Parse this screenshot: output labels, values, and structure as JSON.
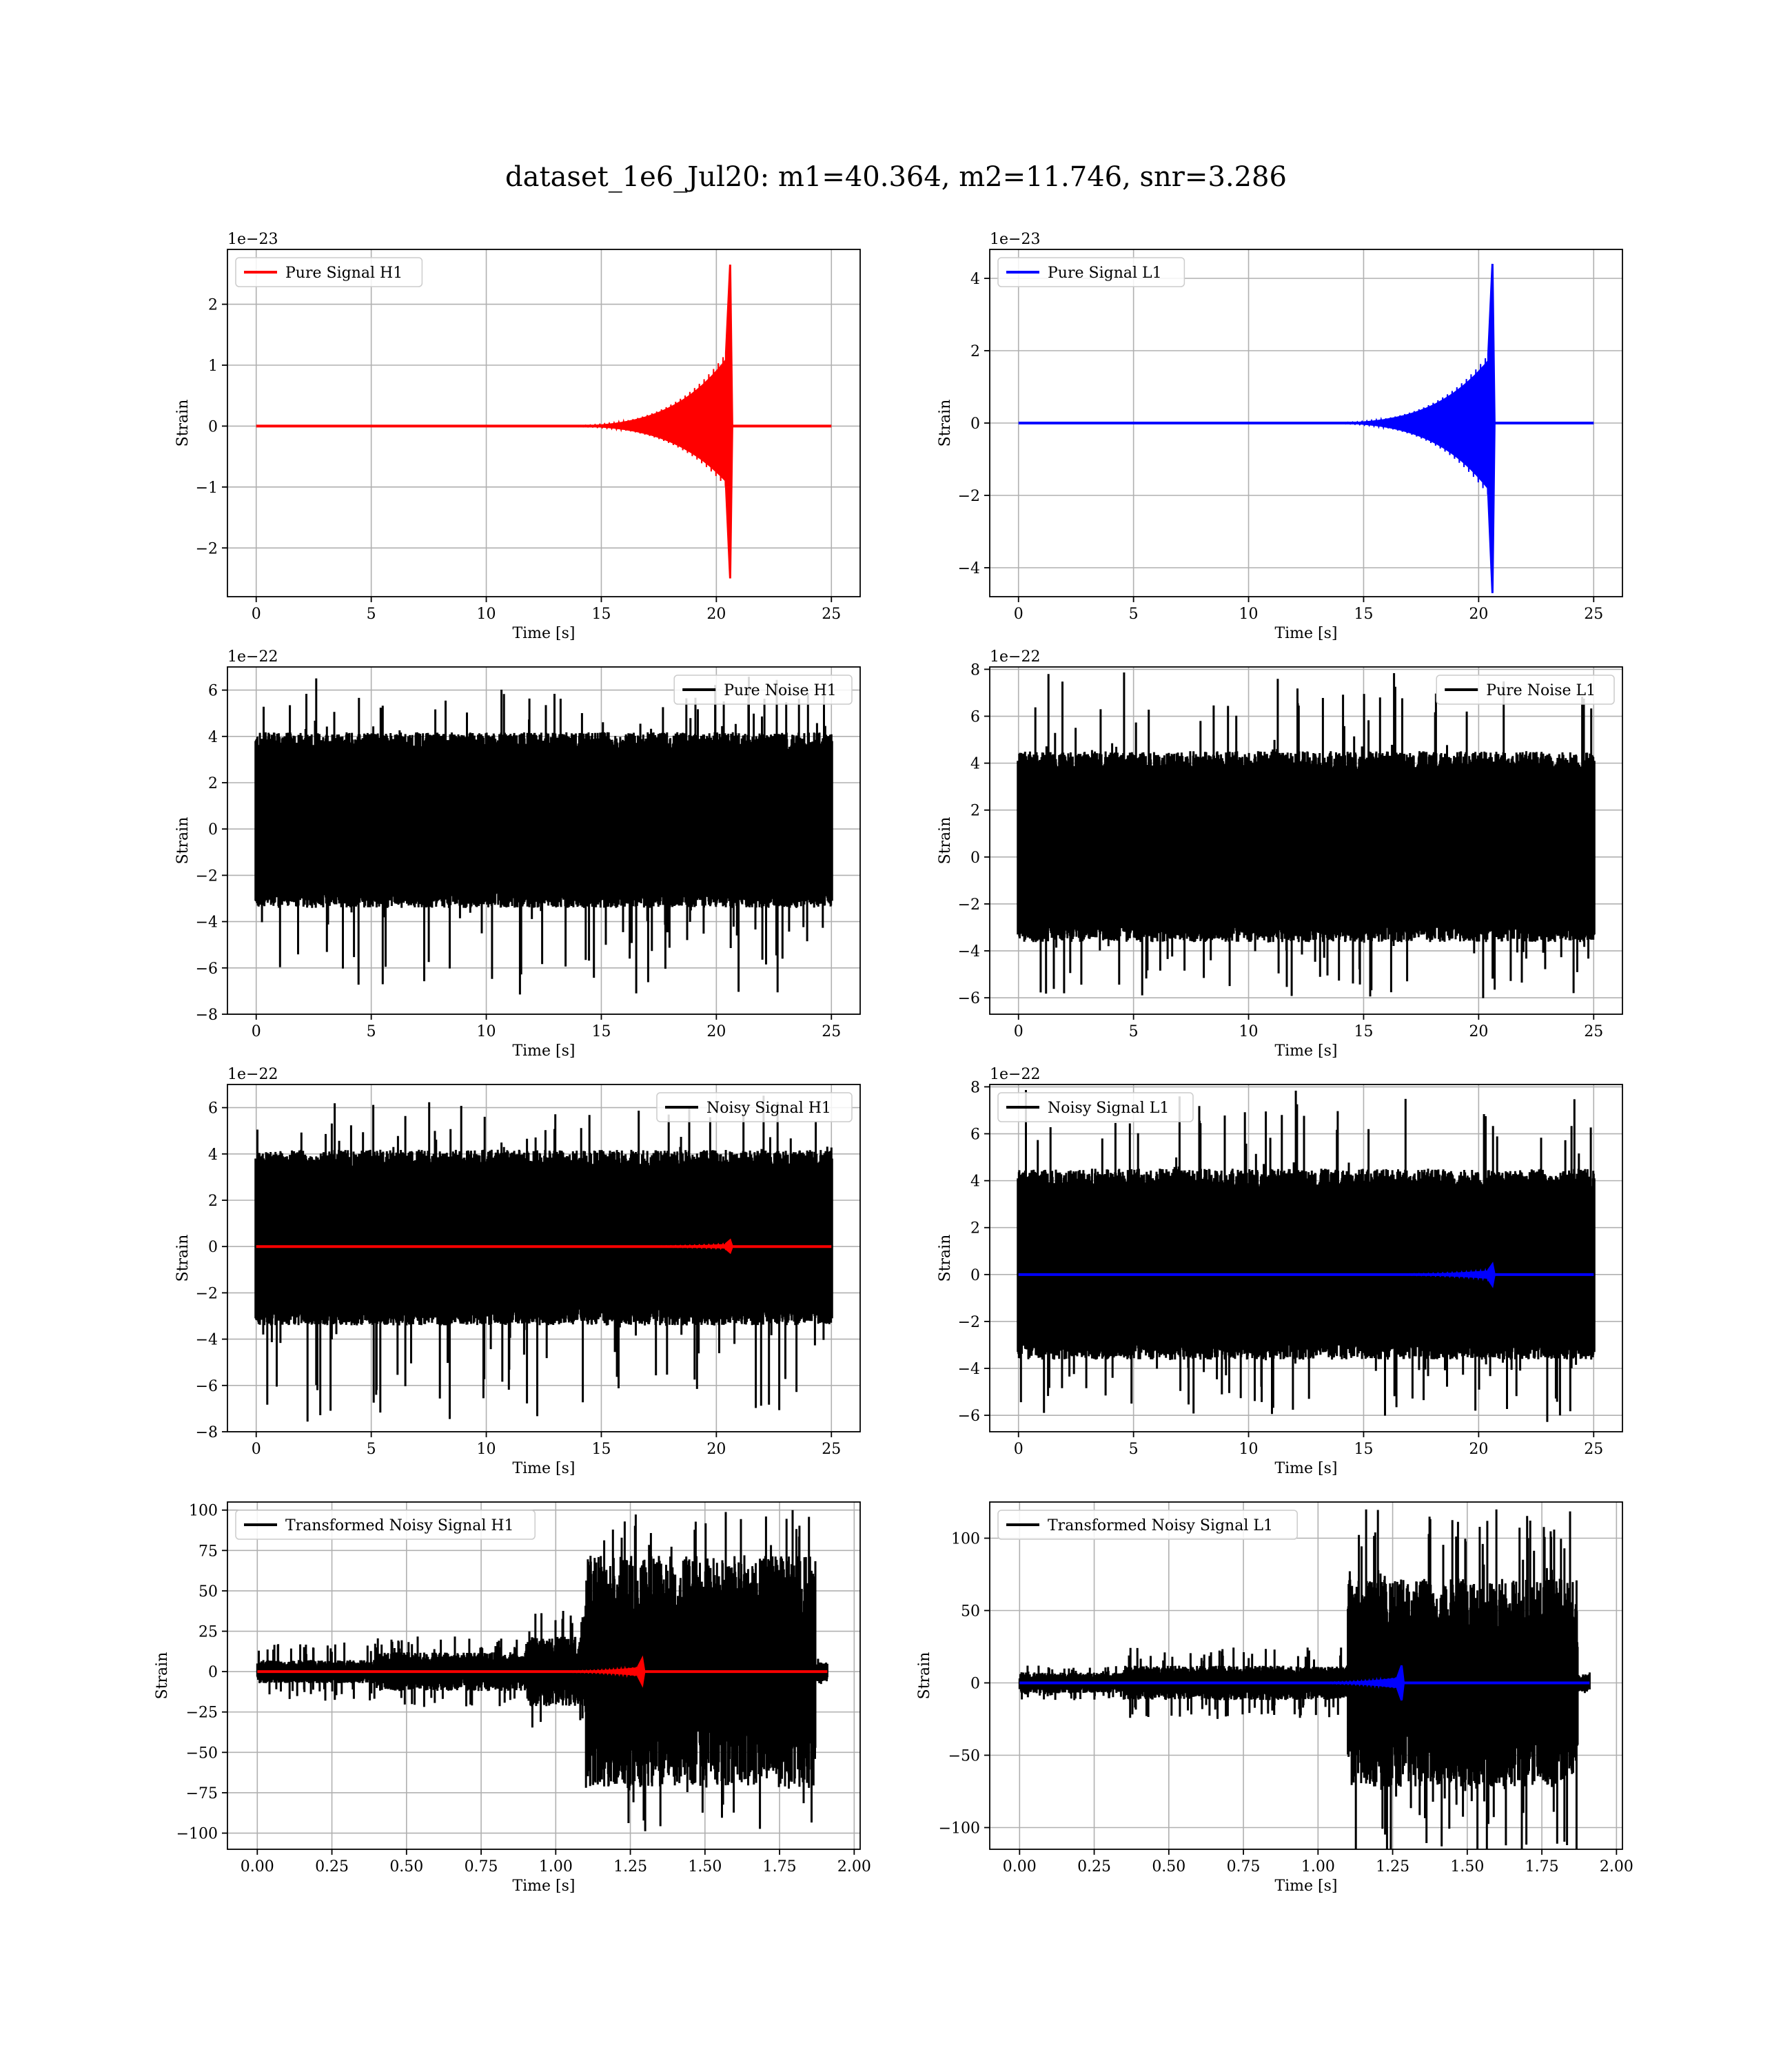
{
  "figure": {
    "title": "dataset_1e6_Jul20: m1=40.364, m2=11.746, snr=3.286"
  },
  "chart_data": [
    {
      "id": "pure-signal-h1",
      "type": "line",
      "xlabel": "Time [s]",
      "ylabel": "Strain",
      "offset_text": "1e−23",
      "xlim": [
        -1.25,
        26.25
      ],
      "ylim": [
        -2.8,
        2.9
      ],
      "xticks": [
        0,
        5,
        10,
        15,
        20,
        25
      ],
      "xtick_labels": [
        "0",
        "5",
        "10",
        "15",
        "20",
        "25"
      ],
      "yticks": [
        -2,
        -1,
        0,
        1,
        2
      ],
      "ytick_labels": [
        "−2",
        "−1",
        "0",
        "1",
        "2"
      ],
      "legend": {
        "position": "upper left",
        "entries": [
          {
            "label": "Pure Signal H1",
            "color": "#ff0000"
          }
        ]
      },
      "series": [
        {
          "name": "Pure Signal H1",
          "kind": "chirp",
          "color": "#ff0000",
          "x_start": 0,
          "x_end": 25,
          "t_merge": 20.6,
          "peak_top": 2.65,
          "peak_bottom": -2.5,
          "inspiral_top": 1.2,
          "inspiral_bottom": -1.0
        }
      ]
    },
    {
      "id": "pure-signal-l1",
      "type": "line",
      "xlabel": "Time [s]",
      "ylabel": "Strain",
      "offset_text": "1e−23",
      "xlim": [
        -1.25,
        26.25
      ],
      "ylim": [
        -4.8,
        4.8
      ],
      "xticks": [
        0,
        5,
        10,
        15,
        20,
        25
      ],
      "xtick_labels": [
        "0",
        "5",
        "10",
        "15",
        "20",
        "25"
      ],
      "yticks": [
        -4,
        -2,
        0,
        2,
        4
      ],
      "ytick_labels": [
        "−4",
        "−2",
        "0",
        "2",
        "4"
      ],
      "legend": {
        "position": "upper left",
        "entries": [
          {
            "label": "Pure Signal L1",
            "color": "#0000ff"
          }
        ]
      },
      "series": [
        {
          "name": "Pure Signal L1",
          "kind": "chirp",
          "color": "#0000ff",
          "x_start": 0,
          "x_end": 25,
          "t_merge": 20.6,
          "peak_top": 4.4,
          "peak_bottom": -4.7,
          "inspiral_top": 1.9,
          "inspiral_bottom": -2.0
        }
      ]
    },
    {
      "id": "pure-noise-h1",
      "type": "line",
      "xlabel": "Time [s]",
      "ylabel": "Strain",
      "offset_text": "1e−22",
      "xlim": [
        -1.25,
        26.25
      ],
      "ylim": [
        -8.0,
        7.0
      ],
      "xticks": [
        0,
        5,
        10,
        15,
        20,
        25
      ],
      "xtick_labels": [
        "0",
        "5",
        "10",
        "15",
        "20",
        "25"
      ],
      "yticks": [
        -8,
        -6,
        -4,
        -2,
        0,
        2,
        4,
        6
      ],
      "ytick_labels": [
        "−8",
        "−6",
        "−4",
        "−2",
        "0",
        "2",
        "4",
        "6"
      ],
      "legend": {
        "position": "upper right",
        "entries": [
          {
            "label": "Pure Noise H1",
            "color": "#000000"
          }
        ]
      },
      "series": [
        {
          "name": "Pure Noise H1",
          "kind": "noise",
          "color": "#000000",
          "x_start": 0,
          "x_end": 25,
          "band_top": 3.8,
          "band_bottom": -3.1,
          "max": 6.3,
          "min": -7.3
        }
      ]
    },
    {
      "id": "pure-noise-l1",
      "type": "line",
      "xlabel": "Time [s]",
      "ylabel": "Strain",
      "offset_text": "1e−22",
      "xlim": [
        -1.25,
        26.25
      ],
      "ylim": [
        -6.7,
        8.1
      ],
      "xticks": [
        0,
        5,
        10,
        15,
        20,
        25
      ],
      "xtick_labels": [
        "0",
        "5",
        "10",
        "15",
        "20",
        "25"
      ],
      "yticks": [
        -6,
        -4,
        -2,
        0,
        2,
        4,
        6,
        8
      ],
      "ytick_labels": [
        "−6",
        "−4",
        "−2",
        "0",
        "2",
        "4",
        "6",
        "8"
      ],
      "legend": {
        "position": "upper right",
        "entries": [
          {
            "label": "Pure Noise L1",
            "color": "#000000"
          }
        ]
      },
      "series": [
        {
          "name": "Pure Noise L1",
          "kind": "noise",
          "color": "#000000",
          "x_start": 0,
          "x_end": 25,
          "band_top": 4.1,
          "band_bottom": -3.3,
          "max": 7.6,
          "min": -6.0
        }
      ]
    },
    {
      "id": "noisy-signal-h1",
      "type": "line",
      "xlabel": "Time [s]",
      "ylabel": "Strain",
      "offset_text": "1e−22",
      "xlim": [
        -1.25,
        26.25
      ],
      "ylim": [
        -8.0,
        7.0
      ],
      "xticks": [
        0,
        5,
        10,
        15,
        20,
        25
      ],
      "xtick_labels": [
        "0",
        "5",
        "10",
        "15",
        "20",
        "25"
      ],
      "yticks": [
        -8,
        -6,
        -4,
        -2,
        0,
        2,
        4,
        6
      ],
      "ytick_labels": [
        "−8",
        "−6",
        "−4",
        "−2",
        "0",
        "2",
        "4",
        "6"
      ],
      "legend": {
        "position": "upper right",
        "entries": [
          {
            "label": "Noisy Signal H1",
            "color": "#000000"
          }
        ]
      },
      "series": [
        {
          "name": "Noisy Signal H1",
          "kind": "noise",
          "color": "#000000",
          "x_start": 0,
          "x_end": 25,
          "band_top": 3.8,
          "band_bottom": -3.1,
          "max": 6.3,
          "min": -7.3
        },
        {
          "kind": "chirp",
          "color": "#ff0000",
          "x_start": 0,
          "x_end": 25,
          "t_merge": 20.6,
          "peak_top": 0.27,
          "peak_bottom": -0.25,
          "inspiral_top": 0.12,
          "inspiral_bottom": -0.1
        }
      ]
    },
    {
      "id": "noisy-signal-l1",
      "type": "line",
      "xlabel": "Time [s]",
      "ylabel": "Strain",
      "offset_text": "1e−22",
      "xlim": [
        -1.25,
        26.25
      ],
      "ylim": [
        -6.7,
        8.1
      ],
      "xticks": [
        0,
        5,
        10,
        15,
        20,
        25
      ],
      "xtick_labels": [
        "0",
        "5",
        "10",
        "15",
        "20",
        "25"
      ],
      "yticks": [
        -6,
        -4,
        -2,
        0,
        2,
        4,
        6,
        8
      ],
      "ytick_labels": [
        "−6",
        "−4",
        "−2",
        "0",
        "2",
        "4",
        "6",
        "8"
      ],
      "legend": {
        "position": "upper left",
        "entries": [
          {
            "label": "Noisy Signal L1",
            "color": "#000000"
          }
        ]
      },
      "series": [
        {
          "name": "Noisy Signal L1",
          "kind": "noise",
          "color": "#000000",
          "x_start": 0,
          "x_end": 25,
          "band_top": 4.1,
          "band_bottom": -3.3,
          "max": 7.6,
          "min": -6.0
        },
        {
          "kind": "chirp",
          "color": "#0000ff",
          "x_start": 0,
          "x_end": 25,
          "t_merge": 20.6,
          "peak_top": 0.44,
          "peak_bottom": -0.47,
          "inspiral_top": 0.19,
          "inspiral_bottom": -0.2
        }
      ]
    },
    {
      "id": "transformed-noisy-signal-h1",
      "type": "line",
      "xlabel": "Time [s]",
      "ylabel": "Strain",
      "offset_text": "",
      "xlim": [
        -0.1,
        2.02
      ],
      "ylim": [
        -110,
        105
      ],
      "xticks": [
        0.0,
        0.25,
        0.5,
        0.75,
        1.0,
        1.25,
        1.5,
        1.75,
        2.0
      ],
      "xtick_labels": [
        "0.00",
        "0.25",
        "0.50",
        "0.75",
        "1.00",
        "1.25",
        "1.50",
        "1.75",
        "2.00"
      ],
      "yticks": [
        -100,
        -75,
        -50,
        -25,
        0,
        25,
        50,
        75,
        100
      ],
      "ytick_labels": [
        "−100",
        "−75",
        "−50",
        "−25",
        "0",
        "25",
        "50",
        "75",
        "100"
      ],
      "legend": {
        "position": "upper left",
        "entries": [
          {
            "label": "Transformed Noisy Signal H1",
            "color": "#000000"
          }
        ]
      },
      "series": [
        {
          "name": "Transformed Noisy Signal H1",
          "kind": "transformed",
          "color": "#000000",
          "x_start": 0,
          "x_end": 1.91,
          "segments": [
            {
              "x0": 0.0,
              "x1": 0.4,
              "amp": 6,
              "spike": 18
            },
            {
              "x0": 0.4,
              "x1": 0.9,
              "amp": 10,
              "spike": 22
            },
            {
              "x0": 0.9,
              "x1": 1.1,
              "amp": 18,
              "spike": 40
            },
            {
              "x0": 1.1,
              "x1": 1.87,
              "amp": 60,
              "spike": 100
            },
            {
              "x0": 1.87,
              "x1": 1.91,
              "amp": 5,
              "spike": 8
            }
          ]
        },
        {
          "kind": "chirp",
          "color": "#ff0000",
          "x_start": 0,
          "x_end": 1.91,
          "t_merge": 1.29,
          "peak_top": 8,
          "peak_bottom": -8,
          "inspiral_top": 3,
          "inspiral_bottom": -3
        }
      ]
    },
    {
      "id": "transformed-noisy-signal-l1",
      "type": "line",
      "xlabel": "Time [s]",
      "ylabel": "Strain",
      "offset_text": "",
      "xlim": [
        -0.1,
        2.02
      ],
      "ylim": [
        -115,
        125
      ],
      "xticks": [
        0.0,
        0.25,
        0.5,
        0.75,
        1.0,
        1.25,
        1.5,
        1.75,
        2.0
      ],
      "xtick_labels": [
        "0.00",
        "0.25",
        "0.50",
        "0.75",
        "1.00",
        "1.25",
        "1.50",
        "1.75",
        "2.00"
      ],
      "yticks": [
        -100,
        -50,
        0,
        50,
        100
      ],
      "ytick_labels": [
        "−100",
        "−50",
        "0",
        "50",
        "100"
      ],
      "legend": {
        "position": "upper left",
        "entries": [
          {
            "label": "Transformed Noisy Signal L1",
            "color": "#000000"
          }
        ]
      },
      "series": [
        {
          "name": "Transformed Noisy Signal L1",
          "kind": "transformed",
          "color": "#000000",
          "x_start": 0,
          "x_end": 1.91,
          "segments": [
            {
              "x0": 0.0,
              "x1": 0.35,
              "amp": 6,
              "spike": 12
            },
            {
              "x0": 0.35,
              "x1": 1.1,
              "amp": 10,
              "spike": 25
            },
            {
              "x0": 1.1,
              "x1": 1.87,
              "amp": 60,
              "spike": 120
            },
            {
              "x0": 1.87,
              "x1": 1.91,
              "amp": 5,
              "spike": 8
            }
          ]
        },
        {
          "kind": "chirp",
          "color": "#0000ff",
          "x_start": 0,
          "x_end": 1.91,
          "t_merge": 1.28,
          "peak_top": 12,
          "peak_bottom": -12,
          "inspiral_top": 4,
          "inspiral_bottom": -4
        }
      ]
    }
  ]
}
